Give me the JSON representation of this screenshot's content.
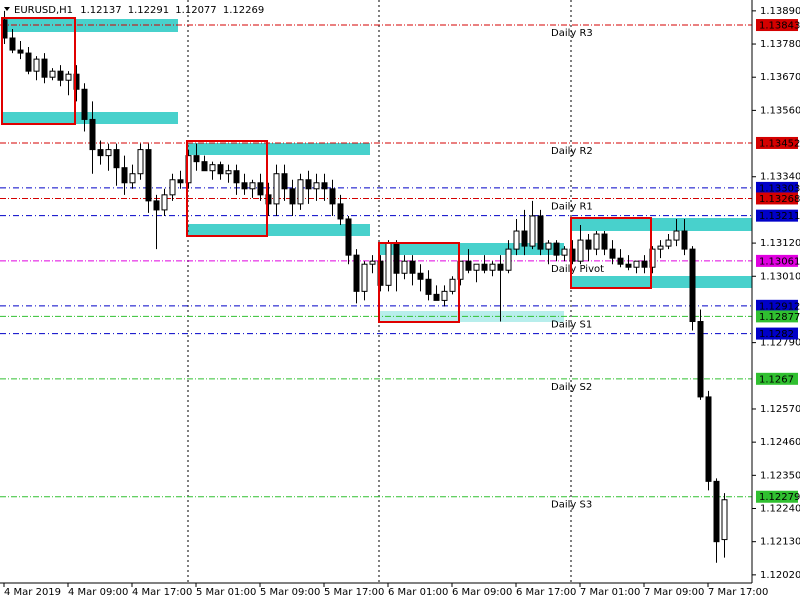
{
  "chart_data": {
    "type": "candlestick",
    "symbol": "EURUSD,H1",
    "candles": [
      [
        1.1386,
        1.1389,
        1.1378,
        1.138
      ],
      [
        1.138,
        1.1383,
        1.1375,
        1.1376
      ],
      [
        1.1376,
        1.1379,
        1.1373,
        1.1375
      ],
      [
        1.1375,
        1.1377,
        1.1368,
        1.1369
      ],
      [
        1.1369,
        1.1374,
        1.1366,
        1.1373
      ],
      [
        1.1373,
        1.1375,
        1.1365,
        1.1367
      ],
      [
        1.1367,
        1.137,
        1.1366,
        1.1369
      ],
      [
        1.1369,
        1.1371,
        1.1364,
        1.1366
      ],
      [
        1.1366,
        1.1369,
        1.1361,
        1.1368
      ],
      [
        1.1368,
        1.1371,
        1.1359,
        1.1363
      ],
      [
        1.1363,
        1.1365,
        1.1349,
        1.1353
      ],
      [
        1.1353,
        1.1359,
        1.1335,
        1.1343
      ],
      [
        1.1343,
        1.1346,
        1.1338,
        1.1341
      ],
      [
        1.1341,
        1.1345,
        1.1336,
        1.1343
      ],
      [
        1.1343,
        1.1345,
        1.1331,
        1.1337
      ],
      [
        1.1337,
        1.1341,
        1.1328,
        1.1332
      ],
      [
        1.1332,
        1.1338,
        1.133,
        1.1335
      ],
      [
        1.1335,
        1.1345,
        1.1333,
        1.1343
      ],
      [
        1.1343,
        1.1345,
        1.1322,
        1.1326
      ],
      [
        1.1326,
        1.1328,
        1.131,
        1.1323
      ],
      [
        1.1323,
        1.133,
        1.1321,
        1.1328
      ],
      [
        1.1328,
        1.1335,
        1.1326,
        1.1333
      ],
      [
        1.1333,
        1.1336,
        1.133,
        1.1332
      ],
      [
        1.1332,
        1.1343,
        1.133,
        1.1341
      ],
      [
        1.1341,
        1.1345,
        1.1336,
        1.1339
      ],
      [
        1.1339,
        1.1341,
        1.1336,
        1.1336
      ],
      [
        1.1336,
        1.1339,
        1.1333,
        1.1338
      ],
      [
        1.1338,
        1.1339,
        1.1333,
        1.1335
      ],
      [
        1.1335,
        1.1338,
        1.1332,
        1.1336
      ],
      [
        1.1336,
        1.1338,
        1.1328,
        1.1332
      ],
      [
        1.1332,
        1.1335,
        1.1328,
        1.133
      ],
      [
        1.133,
        1.1333,
        1.1327,
        1.1332
      ],
      [
        1.1332,
        1.1335,
        1.1326,
        1.1328
      ],
      [
        1.1328,
        1.1332,
        1.1321,
        1.1325
      ],
      [
        1.1325,
        1.1338,
        1.1321,
        1.1335
      ],
      [
        1.1335,
        1.1338,
        1.1326,
        1.133
      ],
      [
        1.133,
        1.1333,
        1.1321,
        1.1325
      ],
      [
        1.1325,
        1.1335,
        1.1323,
        1.1333
      ],
      [
        1.1333,
        1.1336,
        1.1325,
        1.133
      ],
      [
        1.133,
        1.1335,
        1.1326,
        1.1332
      ],
      [
        1.1332,
        1.1335,
        1.1326,
        1.133
      ],
      [
        1.133,
        1.1333,
        1.1321,
        1.1325
      ],
      [
        1.1325,
        1.1328,
        1.1318,
        1.132
      ],
      [
        1.132,
        1.1321,
        1.1305,
        1.1308
      ],
      [
        1.1308,
        1.131,
        1.1292,
        1.1296
      ],
      [
        1.1296,
        1.1306,
        1.1293,
        1.1305
      ],
      [
        1.1305,
        1.1308,
        1.1302,
        1.1306
      ],
      [
        1.1306,
        1.1308,
        1.1296,
        1.1298
      ],
      [
        1.1298,
        1.1313,
        1.1296,
        1.1312
      ],
      [
        1.1312,
        1.1313,
        1.1296,
        1.1302
      ],
      [
        1.1302,
        1.1308,
        1.13,
        1.1306
      ],
      [
        1.1306,
        1.1308,
        1.1298,
        1.1302
      ],
      [
        1.1302,
        1.1305,
        1.1296,
        1.13
      ],
      [
        1.13,
        1.1303,
        1.1293,
        1.1295
      ],
      [
        1.1295,
        1.1298,
        1.1293,
        1.1293
      ],
      [
        1.1293,
        1.1298,
        1.1291,
        1.1296
      ],
      [
        1.1296,
        1.1301,
        1.1295,
        1.13
      ],
      [
        1.13,
        1.1306,
        1.1298,
        1.1306
      ],
      [
        1.1306,
        1.131,
        1.1302,
        1.1303
      ],
      [
        1.1303,
        1.1305,
        1.1299,
        1.1305
      ],
      [
        1.1305,
        1.1308,
        1.1302,
        1.1303
      ],
      [
        1.1303,
        1.1306,
        1.1301,
        1.1305
      ],
      [
        1.1305,
        1.1308,
        1.1286,
        1.1303
      ],
      [
        1.1303,
        1.1313,
        1.1302,
        1.131
      ],
      [
        1.131,
        1.132,
        1.1308,
        1.1316
      ],
      [
        1.1316,
        1.1323,
        1.1308,
        1.1311
      ],
      [
        1.1311,
        1.1326,
        1.131,
        1.1321
      ],
      [
        1.1321,
        1.1323,
        1.1308,
        1.131
      ],
      [
        1.131,
        1.1313,
        1.1305,
        1.1312
      ],
      [
        1.1312,
        1.1313,
        1.1306,
        1.1308
      ],
      [
        1.1308,
        1.1311,
        1.1306,
        1.131
      ],
      [
        1.131,
        1.1313,
        1.1305,
        1.1306
      ],
      [
        1.1306,
        1.1318,
        1.1305,
        1.1313
      ],
      [
        1.1313,
        1.1315,
        1.1306,
        1.131
      ],
      [
        1.131,
        1.1316,
        1.1308,
        1.1315
      ],
      [
        1.1315,
        1.1316,
        1.1308,
        1.131
      ],
      [
        1.131,
        1.1313,
        1.1305,
        1.1307
      ],
      [
        1.1307,
        1.131,
        1.1304,
        1.1305
      ],
      [
        1.1305,
        1.1308,
        1.1303,
        1.1304
      ],
      [
        1.1304,
        1.1306,
        1.1302,
        1.1306
      ],
      [
        1.1306,
        1.1308,
        1.1302,
        1.1304
      ],
      [
        1.1304,
        1.1311,
        1.1302,
        1.131
      ],
      [
        1.131,
        1.1313,
        1.1307,
        1.1311
      ],
      [
        1.1311,
        1.1315,
        1.131,
        1.1313
      ],
      [
        1.1313,
        1.132,
        1.1311,
        1.1316
      ],
      [
        1.1316,
        1.132,
        1.1308,
        1.131
      ],
      [
        1.131,
        1.1311,
        1.1283,
        1.1286
      ],
      [
        1.1286,
        1.129,
        1.126,
        1.1261
      ],
      [
        1.1261,
        1.1263,
        1.123,
        1.1233
      ],
      [
        1.1233,
        1.1234,
        1.1206,
        1.1213
      ],
      [
        1.12137,
        1.12291,
        1.12077,
        1.12269
      ]
    ],
    "ylim": [
      1.11993,
      1.13926
    ],
    "yticks": [
      {
        "value": 1.1389,
        "label": "1.13890"
      },
      {
        "value": 1.1378,
        "label": "1.13780"
      },
      {
        "value": 1.1367,
        "label": "1.13670"
      },
      {
        "value": 1.1356,
        "label": "1.13560"
      },
      {
        "value": 1.1334,
        "label": "1.13340"
      },
      {
        "value": 1.1312,
        "label": "1.13120"
      },
      {
        "value": 1.1301,
        "label": "1.13010"
      },
      {
        "value": 1.1279,
        "label": "1.12790"
      },
      {
        "value": 1.1257,
        "label": "1.12570"
      },
      {
        "value": 1.1246,
        "label": "1.12460"
      },
      {
        "value": 1.1235,
        "label": "1.12350"
      },
      {
        "value": 1.1224,
        "label": "1.12240"
      },
      {
        "value": 1.1213,
        "label": "1.12130"
      },
      {
        "value": 1.1202,
        "label": "1.12020"
      }
    ],
    "xlabels": [
      "4 Mar 2019",
      "4 Mar 09:00",
      "4 Mar 17:00",
      "5 Mar 01:00",
      "5 Mar 09:00",
      "5 Mar 17:00",
      "6 Mar 01:00",
      "6 Mar 09:00",
      "6 Mar 17:00",
      "7 Mar 01:00",
      "7 Mar 09:00",
      "7 Mar 17:00"
    ],
    "levels": [
      {
        "value": 1.13843,
        "label": "Daily R3",
        "color": "#d40000"
      },
      {
        "value": 1.13452,
        "label": "Daily R2",
        "color": "#d40000"
      },
      {
        "value": 1.13303,
        "color": "#0000c8"
      },
      {
        "value": 1.13268,
        "label": "Daily R1",
        "color": "#d40000"
      },
      {
        "value": 1.13211,
        "color": "#0000c8"
      },
      {
        "value": 1.13061,
        "label": "Daily Pivot",
        "color": "#e000e0"
      },
      {
        "value": 1.12912,
        "color": "#0000c8"
      },
      {
        "value": 1.12877,
        "label": "Daily S1",
        "color": "#30c030"
      },
      {
        "value": 1.1282,
        "color": "#0000c8"
      },
      {
        "value": 1.1267,
        "label": "Daily S2",
        "color": "#30c030"
      },
      {
        "value": 1.12279,
        "label": "Daily S3",
        "color": "#30c030"
      }
    ]
  }
}
